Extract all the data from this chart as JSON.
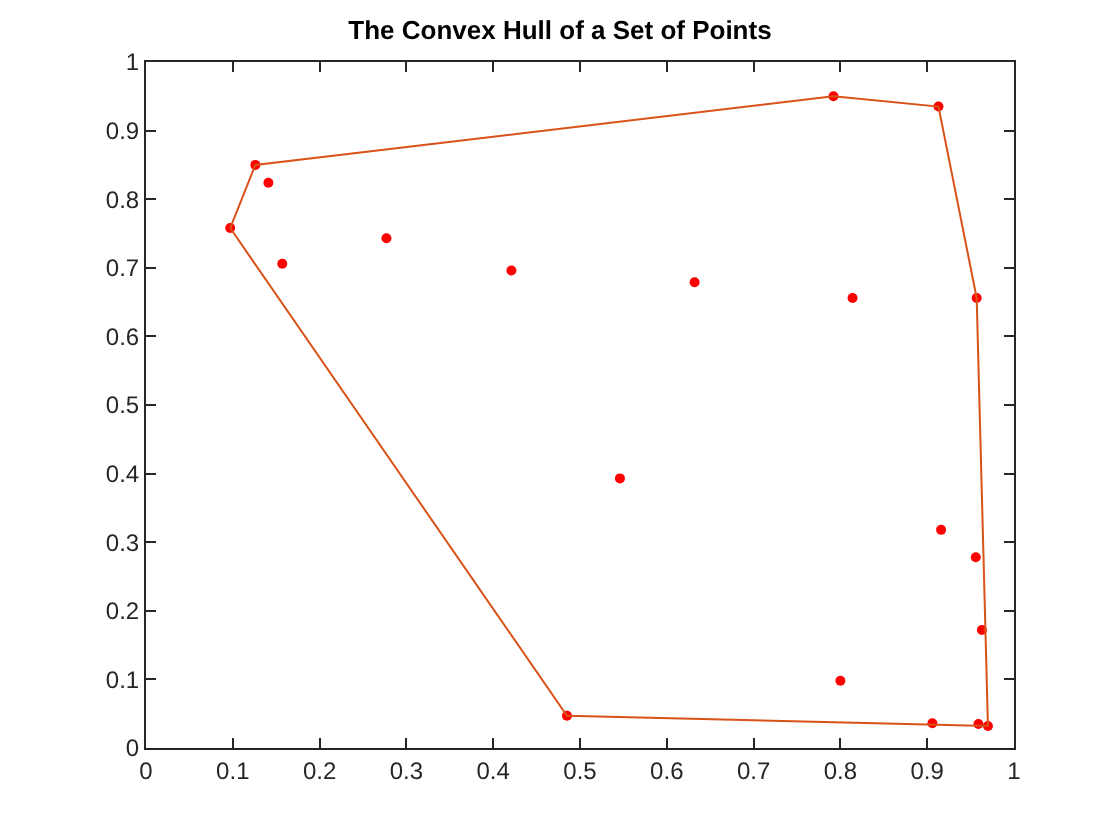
{
  "chart_data": {
    "type": "scatter",
    "title": "The Convex Hull of a Set of Points",
    "series": [
      {
        "color": "#ff0000",
        "marker": "circle",
        "x": [
          0.126,
          0.141,
          0.097,
          0.157,
          0.277,
          0.421,
          0.632,
          0.792,
          0.913,
          0.814,
          0.957,
          0.485,
          0.546,
          0.916,
          0.956,
          0.963,
          0.8,
          0.906,
          0.959,
          0.97
        ],
        "values": [
          0.85,
          0.824,
          0.758,
          0.706,
          0.743,
          0.696,
          0.679,
          0.95,
          0.935,
          0.656,
          0.656,
          0.047,
          0.393,
          0.318,
          0.278,
          0.172,
          0.098,
          0.036,
          0.035,
          0.032
        ]
      },
      {
        "type": "line",
        "color": "#d95319",
        "marker": "none",
        "x": [
          0.097,
          0.126,
          0.792,
          0.913,
          0.957,
          0.97
        ],
        "values": [
          0.758,
          0.85,
          0.95,
          0.935,
          0.656,
          0.032
        ]
      },
      {
        "type": "line",
        "color": "#d95319",
        "marker": "none",
        "x": [
          0.097,
          0.485,
          0.97
        ],
        "values": [
          0.758,
          0.047,
          0.032
        ]
      }
    ],
    "xlim": [
      0,
      1
    ],
    "xticks": [
      0,
      0.1,
      0.2,
      0.3,
      0.4,
      0.5,
      0.6,
      0.7,
      0.8,
      0.9,
      1
    ],
    "ylim": [
      0,
      1
    ],
    "yticks": [
      0,
      0.1,
      0.2,
      0.3,
      0.4,
      0.5,
      0.6,
      0.7,
      0.8,
      0.9,
      1
    ]
  }
}
